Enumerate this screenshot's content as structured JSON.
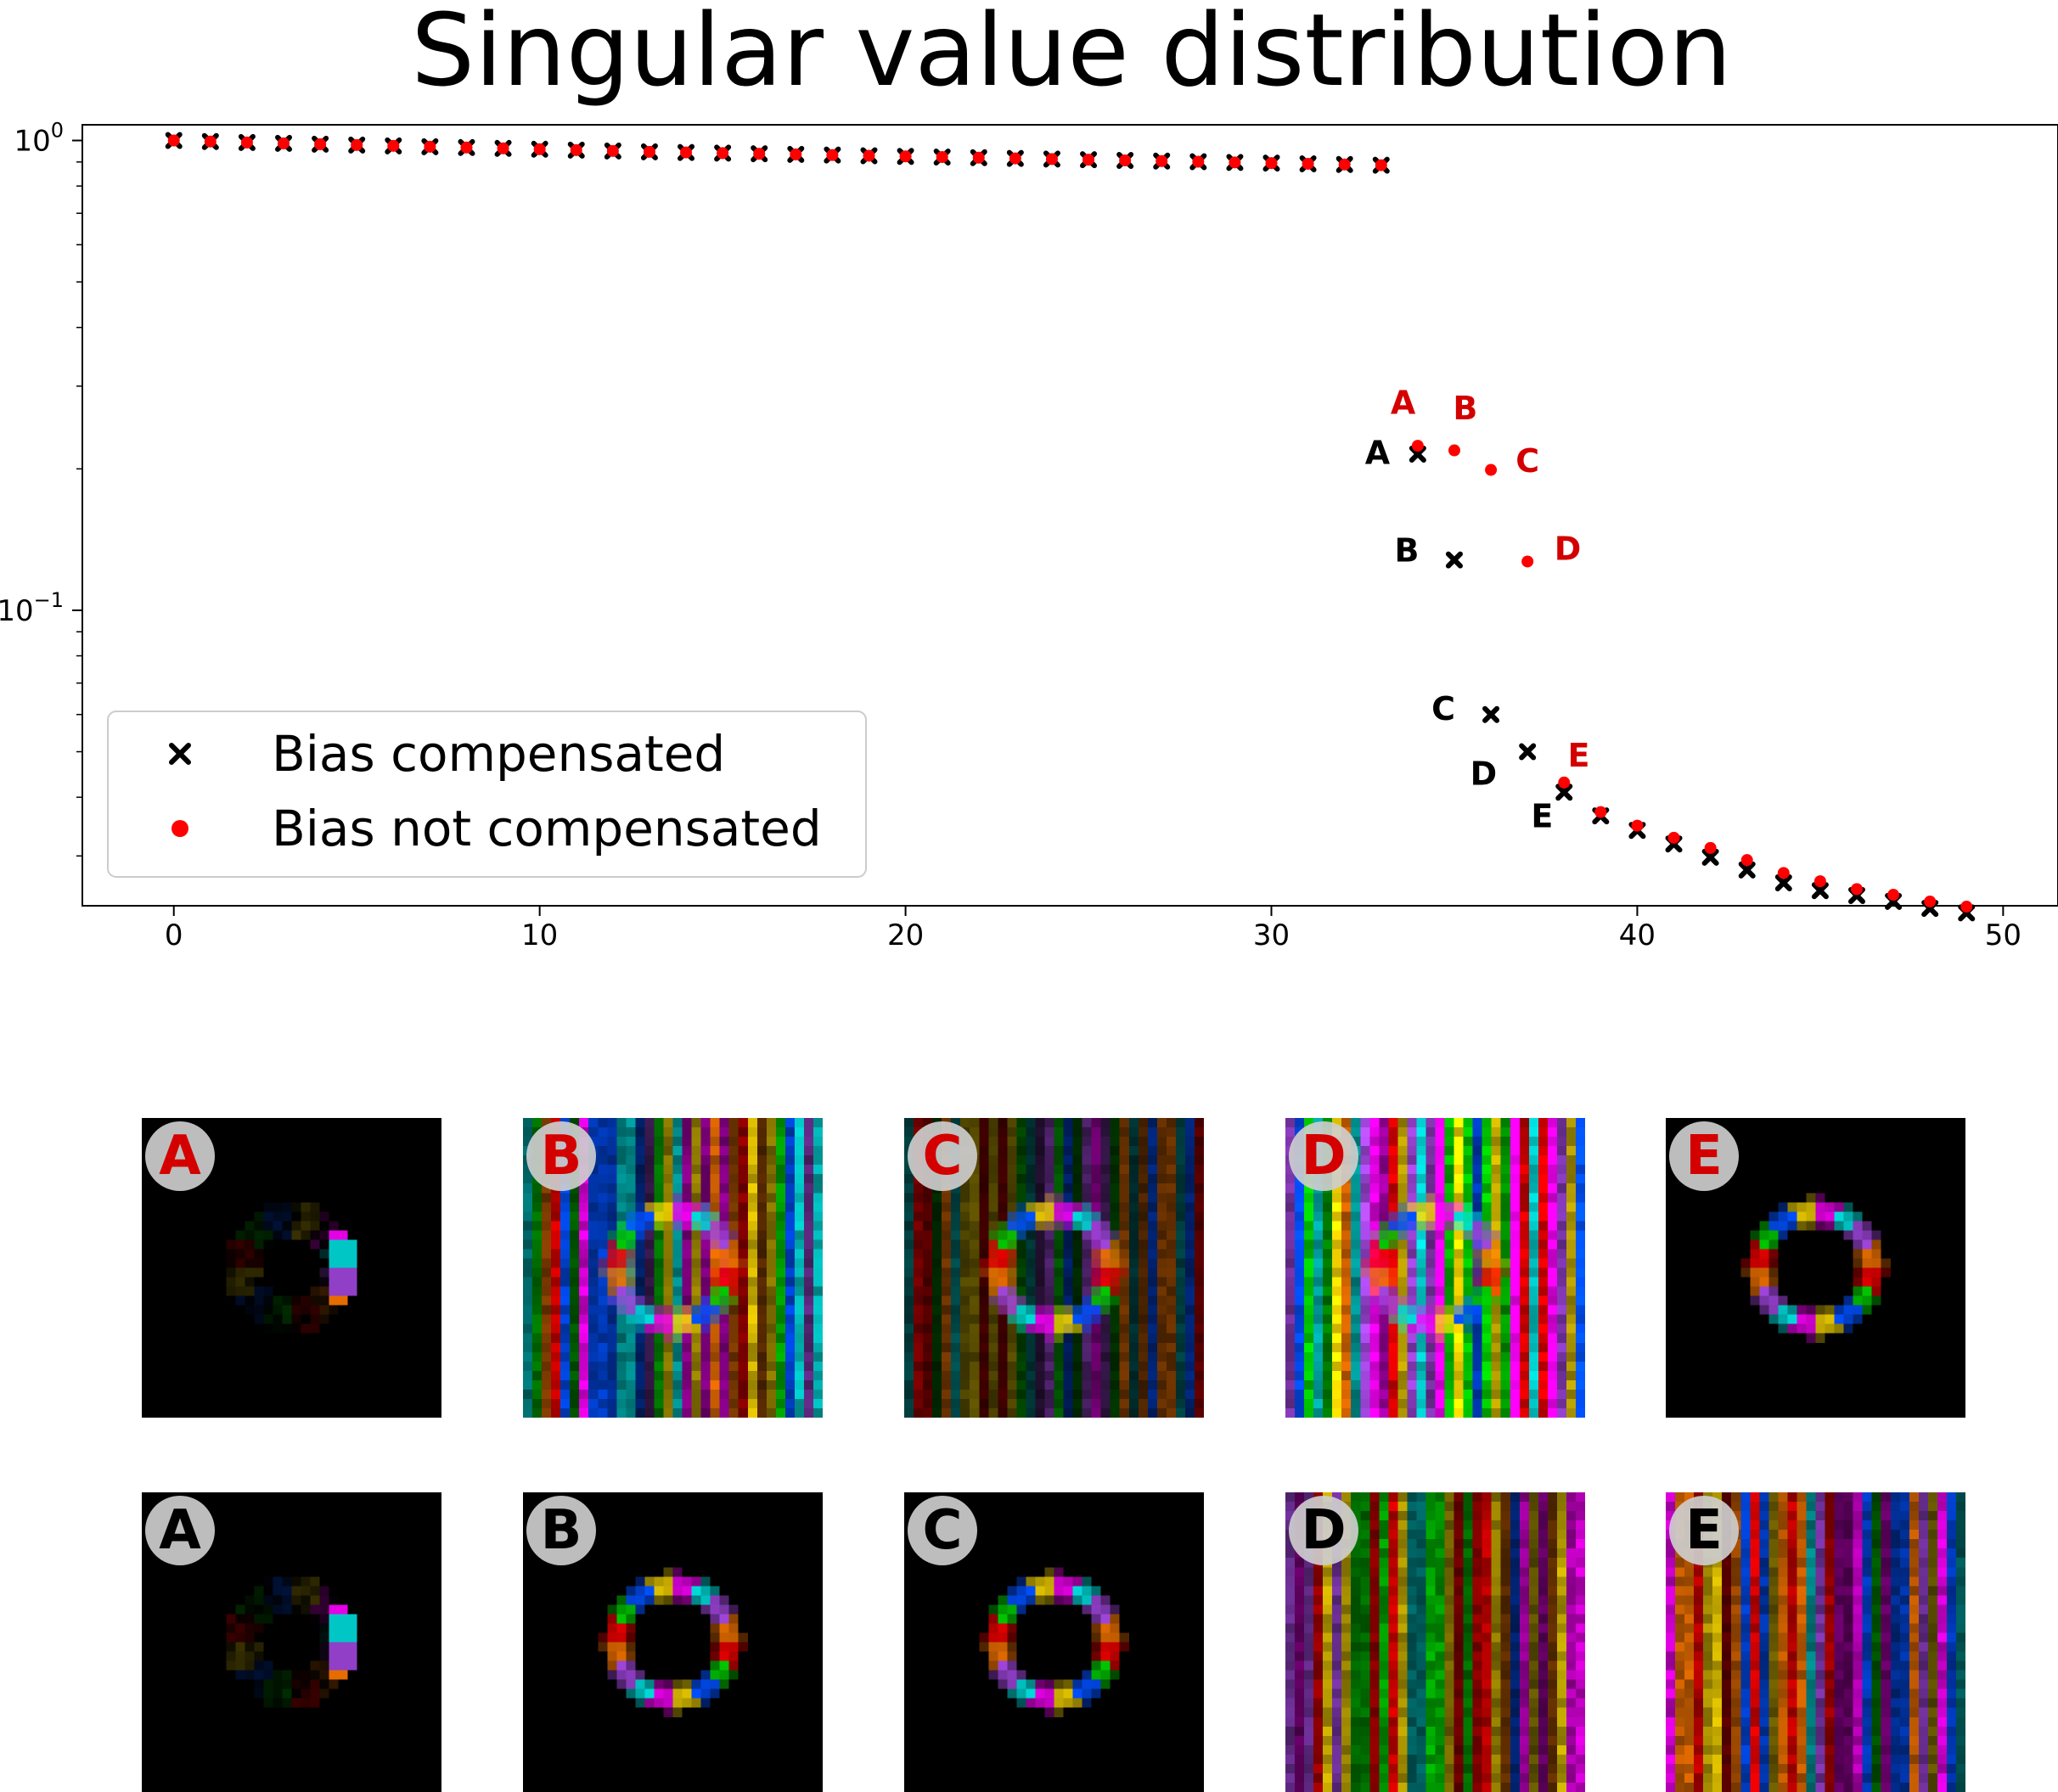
{
  "chart_data": {
    "type": "scatter",
    "title": "Singular value distribution",
    "xlabel": "",
    "ylabel": "",
    "xlim": [
      -2.5,
      51.5
    ],
    "ylim": [
      0.0235,
      1.08
    ],
    "yscale": "log",
    "x_ticks": [
      0,
      10,
      20,
      30,
      40,
      50
    ],
    "y_ticks": [
      {
        "value": 1.0,
        "base": "10",
        "exp": "0"
      },
      {
        "value": 0.1,
        "base": "10",
        "exp": "−1"
      }
    ],
    "grid": false,
    "legend_position": "bottom-left",
    "series": [
      {
        "name": "Bias compensated",
        "marker": "x",
        "color": "#000000",
        "x": [
          0,
          1,
          2,
          3,
          4,
          5,
          6,
          7,
          8,
          9,
          10,
          11,
          12,
          13,
          14,
          15,
          16,
          17,
          18,
          19,
          20,
          21,
          22,
          23,
          24,
          25,
          26,
          27,
          28,
          29,
          30,
          31,
          32,
          33,
          34,
          35,
          36,
          37,
          38,
          39,
          40,
          41,
          42,
          43,
          44,
          45,
          46,
          47,
          48,
          49
        ],
        "y": [
          1.0,
          0.995,
          0.99,
          0.986,
          0.982,
          0.978,
          0.974,
          0.97,
          0.966,
          0.962,
          0.958,
          0.954,
          0.95,
          0.946,
          0.943,
          0.94,
          0.937,
          0.934,
          0.931,
          0.928,
          0.925,
          0.922,
          0.919,
          0.916,
          0.913,
          0.91,
          0.907,
          0.904,
          0.901,
          0.898,
          0.895,
          0.892,
          0.889,
          0.886,
          0.215,
          0.128,
          0.06,
          0.05,
          0.041,
          0.0365,
          0.034,
          0.0318,
          0.0298,
          0.028,
          0.0263,
          0.0253,
          0.0247,
          0.024,
          0.0232,
          0.0227
        ]
      },
      {
        "name": "Bias not compensated",
        "marker": "o",
        "color": "#ff0000",
        "x": [
          0,
          1,
          2,
          3,
          4,
          5,
          6,
          7,
          8,
          9,
          10,
          11,
          12,
          13,
          14,
          15,
          16,
          17,
          18,
          19,
          20,
          21,
          22,
          23,
          24,
          25,
          26,
          27,
          28,
          29,
          30,
          31,
          32,
          33,
          34,
          35,
          36,
          37,
          38,
          39,
          40,
          41,
          42,
          43,
          44,
          45,
          46,
          47,
          48,
          49
        ],
        "y": [
          1.0,
          0.995,
          0.99,
          0.986,
          0.982,
          0.978,
          0.974,
          0.97,
          0.966,
          0.962,
          0.958,
          0.954,
          0.95,
          0.946,
          0.943,
          0.94,
          0.937,
          0.934,
          0.931,
          0.928,
          0.925,
          0.922,
          0.919,
          0.916,
          0.913,
          0.91,
          0.907,
          0.904,
          0.901,
          0.898,
          0.895,
          0.892,
          0.889,
          0.886,
          0.224,
          0.219,
          0.199,
          0.127,
          0.043,
          0.0372,
          0.0348,
          0.0328,
          0.0312,
          0.0294,
          0.0276,
          0.0265,
          0.0255,
          0.0248,
          0.024,
          0.0234
        ]
      }
    ],
    "annotations": [
      {
        "text": "A",
        "color": "#d40000",
        "x": 33.6,
        "y": 0.262
      },
      {
        "text": "B",
        "color": "#d40000",
        "x": 35.3,
        "y": 0.255
      },
      {
        "text": "C",
        "color": "#d40000",
        "x": 37.0,
        "y": 0.197
      },
      {
        "text": "D",
        "color": "#d40000",
        "x": 38.1,
        "y": 0.128
      },
      {
        "text": "E",
        "color": "#d40000",
        "x": 38.4,
        "y": 0.0465
      },
      {
        "text": "A",
        "color": "#000000",
        "x": 32.9,
        "y": 0.205
      },
      {
        "text": "B",
        "color": "#000000",
        "x": 33.7,
        "y": 0.127
      },
      {
        "text": "C",
        "color": "#000000",
        "x": 34.7,
        "y": 0.0585
      },
      {
        "text": "D",
        "color": "#000000",
        "x": 35.8,
        "y": 0.0425
      },
      {
        "text": "E",
        "color": "#000000",
        "x": 37.4,
        "y": 0.0345
      }
    ]
  },
  "legend": {
    "items": [
      {
        "label": "Bias compensated",
        "marker": "x",
        "color": "#000000"
      },
      {
        "label": "Bias not compensated",
        "marker": "o",
        "color": "#ff0000"
      }
    ]
  },
  "thumbnails": {
    "rows": [
      {
        "badge_color": "#d40000",
        "tiles": [
          {
            "label": "A",
            "pattern": "partial-ring"
          },
          {
            "label": "B",
            "pattern": "ring-noise"
          },
          {
            "label": "C",
            "pattern": "ring-faint-noise"
          },
          {
            "label": "D",
            "pattern": "ring-noise-bright"
          },
          {
            "label": "E",
            "pattern": "ring"
          }
        ]
      },
      {
        "badge_color": "#000000",
        "tiles": [
          {
            "label": "A",
            "pattern": "partial-ring"
          },
          {
            "label": "B",
            "pattern": "ring"
          },
          {
            "label": "C",
            "pattern": "ring"
          },
          {
            "label": "D",
            "pattern": "noise"
          },
          {
            "label": "E",
            "pattern": "noise"
          }
        ]
      }
    ]
  }
}
